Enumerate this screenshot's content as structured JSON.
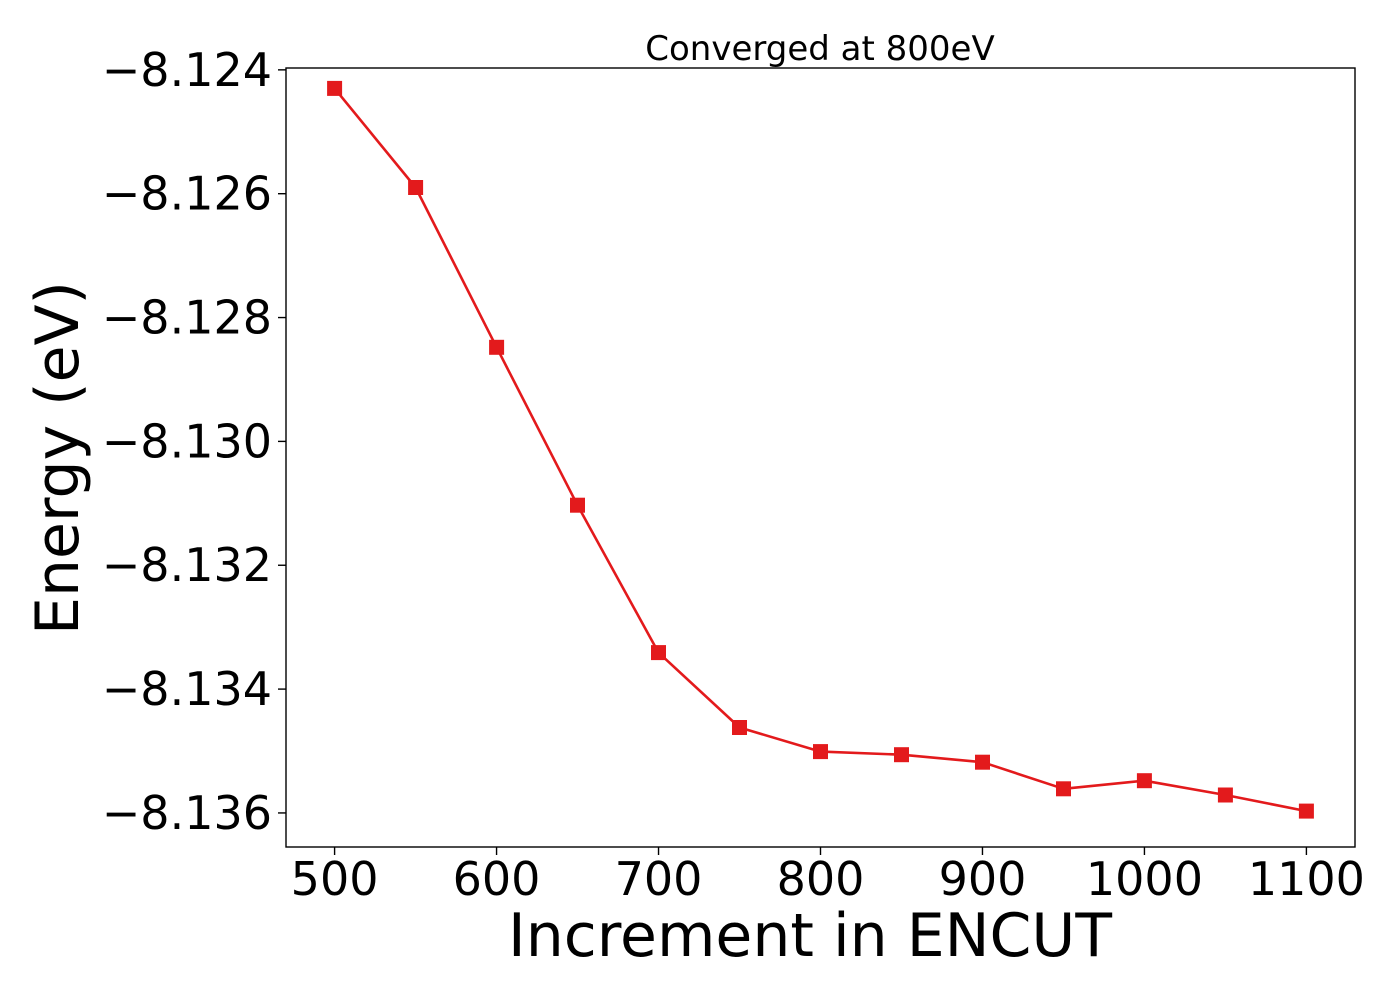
{
  "chart_data": {
    "type": "line",
    "title": "Converged at 800eV",
    "xlabel": "Increment in ENCUT",
    "ylabel": "Energy (eV)",
    "xlim": [
      470,
      1130
    ],
    "ylim": [
      -8.13655,
      -8.12397
    ],
    "xticks": [
      500,
      600,
      700,
      800,
      900,
      1000,
      1100
    ],
    "xtick_labels": [
      "500",
      "600",
      "700",
      "800",
      "900",
      "1000",
      "1100"
    ],
    "yticks": [
      -8.124,
      -8.126,
      -8.128,
      -8.13,
      -8.132,
      -8.134,
      -8.136
    ],
    "ytick_labels": [
      "−8.124",
      "−8.126",
      "−8.128",
      "−8.130",
      "−8.132",
      "−8.134",
      "−8.136"
    ],
    "grid": false,
    "series": [
      {
        "color": "#e31a1c",
        "marker": "square",
        "x": [
          500,
          550,
          600,
          650,
          700,
          750,
          800,
          850,
          900,
          950,
          1000,
          1050,
          1100
        ],
        "y": [
          -8.1243,
          -8.1259,
          -8.12848,
          -8.13103,
          -8.13341,
          -8.13462,
          -8.13501,
          -8.13506,
          -8.13518,
          -8.13561,
          -8.13548,
          -8.13571,
          -8.13597
        ]
      }
    ]
  }
}
